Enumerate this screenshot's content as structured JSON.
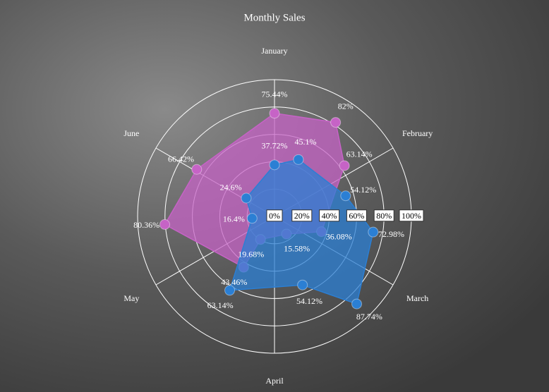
{
  "chart_data": {
    "type": "polar-line",
    "title": "Monthly Sales",
    "categories": [
      "January",
      "February",
      "March",
      "April",
      "May",
      "June"
    ],
    "xlim": [
      0,
      6
    ],
    "ylim": [
      0,
      100
    ],
    "yticks": [
      {
        "value": 0,
        "label": "0%"
      },
      {
        "value": 20,
        "label": "20%"
      },
      {
        "value": 40,
        "label": "40%"
      },
      {
        "value": 60,
        "label": "60%"
      },
      {
        "value": 80,
        "label": "80%"
      },
      {
        "value": 100,
        "label": "100%"
      }
    ],
    "grid": true,
    "series": [
      {
        "color": "#c663c6",
        "x": [
          0,
          0.55,
          0.9,
          1.8,
          2.43,
          3.52,
          3.52,
          4.43,
          5.02
        ],
        "values": [
          75.44,
          82,
          63.14,
          36.08,
          15.58,
          19.68,
          43.46,
          80.36,
          66.42
        ],
        "value_labels": [
          "75.44%",
          "82%",
          "63.14%",
          "36.08%",
          "15.58%",
          "19.68%",
          "43.46%",
          "80.36%",
          "66.42%"
        ]
      },
      {
        "color": "#2b7fd4",
        "x": [
          0,
          0.38,
          1.23,
          1.65,
          2.28,
          2.63,
          3.52,
          4.42,
          5.05
        ],
        "values": [
          37.72,
          45.1,
          54.12,
          72.98,
          87.74,
          54.12,
          63.14,
          16.4,
          24.6
        ],
        "value_labels": [
          "37.72%",
          "45.1%",
          "54.12%",
          "72.98%",
          "87.74%",
          "54.12%",
          "63.14%",
          "16.4%",
          "24.6%"
        ]
      }
    ]
  }
}
